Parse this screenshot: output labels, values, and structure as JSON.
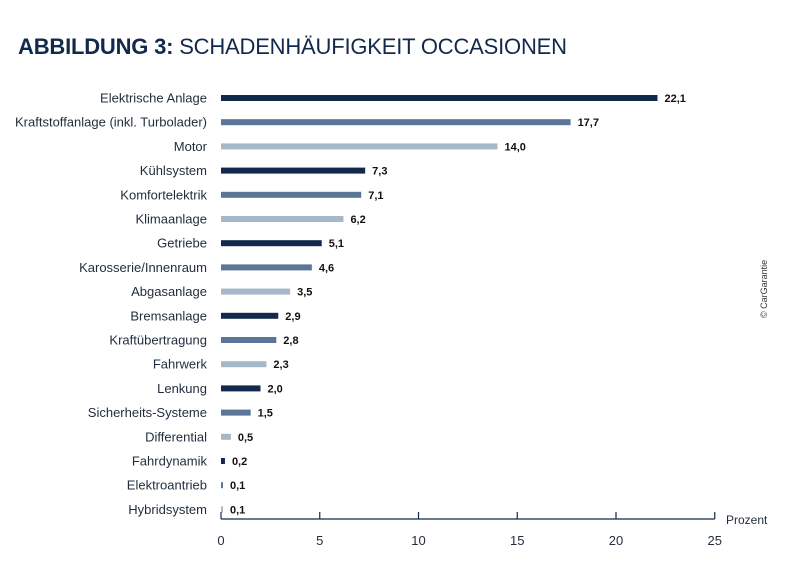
{
  "header": {
    "title_bold": "ABBILDUNG 3:",
    "title_rest": "SCHADENHÄUFIGKEIT OCCASIONEN"
  },
  "source": "© CarGarantie",
  "chart_data": {
    "type": "bar",
    "orientation": "horizontal",
    "title": "ABBILDUNG 3: SCHADENHÄUFIGKEIT OCCASIONEN",
    "xlabel": "Prozent",
    "ylabel": "",
    "xlim": [
      0,
      25
    ],
    "xticks": [
      0,
      5,
      10,
      15,
      20,
      25
    ],
    "grid": false,
    "categories": [
      "Elektrische Anlage",
      "Kraftstoffanlage (inkl. Turbolader)",
      "Motor",
      "Kühlsystem",
      "Komfortelektrik",
      "Klimaanlage",
      "Getriebe",
      "Karosserie/Innenraum",
      "Abgasanlage",
      "Bremsanlage",
      "Kraftübertragung",
      "Fahrwerk",
      "Lenkung",
      "Sicherheits-Systeme",
      "Differential",
      "Fahrdynamik",
      "Elektroantrieb",
      "Hybridsystem"
    ],
    "values": [
      22.1,
      17.7,
      14.0,
      7.3,
      7.1,
      6.2,
      5.1,
      4.6,
      3.5,
      2.9,
      2.8,
      2.3,
      2.0,
      1.5,
      0.5,
      0.2,
      0.1,
      0.1
    ],
    "value_labels": [
      "22,1",
      "17,7",
      "14,0",
      "7,3",
      "7,1",
      "6,2",
      "5,1",
      "4,6",
      "3,5",
      "2,9",
      "2,8",
      "2,3",
      "2,0",
      "1,5",
      "0,5",
      "0,2",
      "0,1",
      "0,1"
    ],
    "bar_colors": [
      "#13294b",
      "#5a7596",
      "#a7b7ca"
    ],
    "axis_color": "#13294b"
  }
}
